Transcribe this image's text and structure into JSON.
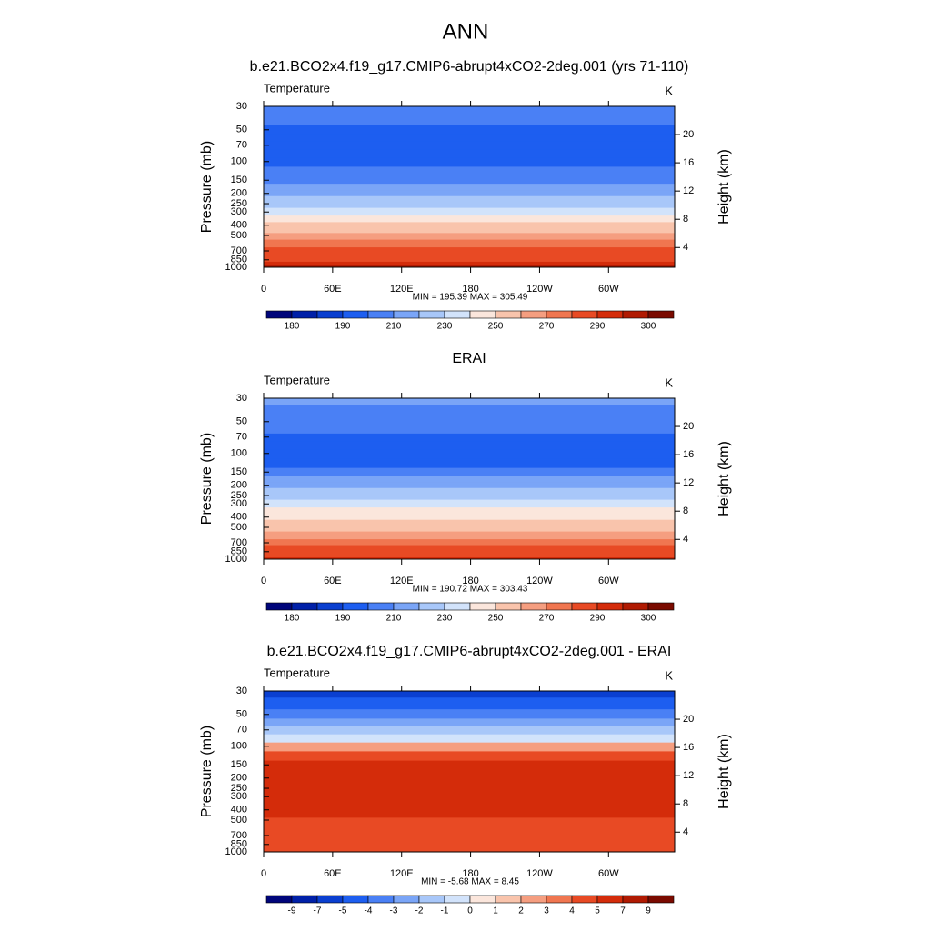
{
  "title": "ANN",
  "chart_data": [
    {
      "type": "contour",
      "title": "b.e21.BCO2x4.f19_g17.CMIP6-abrupt4xCO2-2deg.001 (yrs 71-110)",
      "left_label": "Temperature",
      "right_label": "K",
      "ylabel": "Pressure (mb)",
      "y2label": "Height (km)",
      "stats": "MIN = 195.39  MAX = 305.49",
      "xlim": [
        0,
        357.5
      ],
      "xticks": [
        0,
        {
          "value": 60,
          "label": "60E"
        },
        {
          "value": 120,
          "label": "120E"
        },
        180,
        {
          "value": 240,
          "label": "120W"
        },
        {
          "value": 300,
          "label": "60W"
        }
      ],
      "ylim": [
        30,
        1000
      ],
      "ylog": true,
      "yreverse": true,
      "yticks": [
        30,
        50,
        70,
        100,
        150,
        200,
        250,
        300,
        400,
        500,
        700,
        850,
        1000
      ],
      "y2lim": [
        1.2,
        24
      ],
      "y2ticks": [
        4,
        8,
        12,
        16,
        20
      ],
      "y": [
        30,
        40,
        50,
        60,
        70,
        85,
        100,
        125,
        150,
        175,
        200,
        225,
        250,
        300,
        350,
        400,
        450,
        500,
        600,
        700,
        775,
        850,
        925,
        1000
      ],
      "values": [
        205,
        202,
        197,
        196,
        196,
        196,
        197,
        200,
        205,
        212,
        215,
        222,
        228,
        238,
        245,
        252,
        258,
        263,
        272,
        280,
        285,
        289,
        293,
        297
      ],
      "colorbar": {
        "levels": [
          180,
          185,
          190,
          200,
          210,
          220,
          230,
          240,
          250,
          260,
          270,
          280,
          290,
          295,
          300
        ],
        "ticks": [
          180,
          190,
          210,
          230,
          250,
          270,
          290,
          300
        ],
        "colors": [
          "#00057a",
          "#0020a8",
          "#0a3fd0",
          "#1d5ef0",
          "#4a80f5",
          "#7aa5f7",
          "#a8c7f9",
          "#d2e3fb",
          "#fbe6dc",
          "#f9c4ac",
          "#f59e80",
          "#f07650",
          "#e84a24",
          "#d42c0a",
          "#b01a02",
          "#7a0a00"
        ]
      }
    },
    {
      "type": "contour",
      "title": "ERAI",
      "left_label": "Temperature",
      "right_label": "K",
      "ylabel": "Pressure (mb)",
      "y2label": "Height (km)",
      "stats": "MIN = 190.72  MAX = 303.43",
      "xlim": [
        0,
        357.5
      ],
      "xticks": [
        0,
        {
          "value": 60,
          "label": "60E"
        },
        {
          "value": 120,
          "label": "120E"
        },
        180,
        {
          "value": 240,
          "label": "120W"
        },
        {
          "value": 300,
          "label": "60W"
        }
      ],
      "ylim": [
        30,
        1000
      ],
      "ylog": true,
      "yreverse": true,
      "yticks": [
        30,
        50,
        70,
        100,
        150,
        200,
        250,
        300,
        400,
        500,
        700,
        850,
        1000
      ],
      "y2lim": [
        1.2,
        24
      ],
      "y2ticks": [
        4,
        8,
        12,
        16,
        20
      ],
      "y": [
        30,
        40,
        50,
        60,
        70,
        85,
        100,
        125,
        150,
        175,
        200,
        225,
        250,
        300,
        350,
        400,
        450,
        500,
        600,
        700,
        775,
        850,
        925,
        1000
      ],
      "values": [
        212,
        208,
        205,
        202,
        198,
        197,
        197,
        198,
        205,
        210,
        215,
        220,
        226,
        234,
        241,
        248,
        254,
        259,
        267,
        275,
        280,
        285,
        289,
        292
      ],
      "colorbar": {
        "levels": [
          180,
          185,
          190,
          200,
          210,
          220,
          230,
          240,
          250,
          260,
          270,
          280,
          290,
          295,
          300
        ],
        "ticks": [
          180,
          190,
          210,
          230,
          250,
          270,
          290,
          300
        ],
        "colors": [
          "#00057a",
          "#0020a8",
          "#0a3fd0",
          "#1d5ef0",
          "#4a80f5",
          "#7aa5f7",
          "#a8c7f9",
          "#d2e3fb",
          "#fbe6dc",
          "#f9c4ac",
          "#f59e80",
          "#f07650",
          "#e84a24",
          "#d42c0a",
          "#b01a02",
          "#7a0a00"
        ]
      }
    },
    {
      "type": "contour",
      "title": "b.e21.BCO2x4.f19_g17.CMIP6-abrupt4xCO2-2deg.001 - ERAI",
      "left_label": "Temperature",
      "right_label": "K",
      "ylabel": "Pressure (mb)",
      "y2label": "Height (km)",
      "stats": "MIN =  -5.68  MAX =   8.45",
      "xlim": [
        0,
        357.5
      ],
      "xticks": [
        0,
        {
          "value": 60,
          "label": "60E"
        },
        {
          "value": 120,
          "label": "120E"
        },
        180,
        {
          "value": 240,
          "label": "120W"
        },
        {
          "value": 300,
          "label": "60W"
        }
      ],
      "ylim": [
        30,
        1000
      ],
      "ylog": true,
      "yreverse": true,
      "yticks": [
        30,
        50,
        70,
        100,
        150,
        200,
        250,
        300,
        400,
        500,
        700,
        850,
        1000
      ],
      "y2lim": [
        1.2,
        24
      ],
      "y2ticks": [
        4,
        8,
        12,
        16,
        20
      ],
      "y": [
        30,
        40,
        50,
        60,
        70,
        85,
        100,
        125,
        150,
        175,
        200,
        225,
        250,
        300,
        350,
        400,
        450,
        500,
        600,
        700,
        775,
        850,
        925,
        1000
      ],
      "values": [
        -5.5,
        -4.5,
        -3.5,
        -2.5,
        -1.5,
        -0.5,
        2.5,
        4.2,
        5.5,
        6,
        6,
        6,
        6,
        6,
        5.8,
        5.6,
        5.5,
        4.8,
        4.6,
        4.5,
        4.4,
        4.5,
        4.7,
        4.6
      ],
      "colorbar": {
        "levels": [
          -9,
          -7,
          -5,
          -4,
          -3,
          -2,
          -1,
          0,
          1,
          2,
          3,
          4,
          5,
          7,
          9
        ],
        "ticks": [
          -9,
          -7,
          -5,
          -4,
          -3,
          -2,
          -1,
          0,
          1,
          2,
          3,
          4,
          5,
          7,
          9
        ],
        "colors": [
          "#00057a",
          "#0020a8",
          "#0a3fd0",
          "#1d5ef0",
          "#4a80f5",
          "#7aa5f7",
          "#a8c7f9",
          "#d2e3fb",
          "#fbe6dc",
          "#f9c4ac",
          "#f59e80",
          "#f07650",
          "#e84a24",
          "#d42c0a",
          "#b01a02",
          "#7a0a00"
        ]
      }
    }
  ]
}
